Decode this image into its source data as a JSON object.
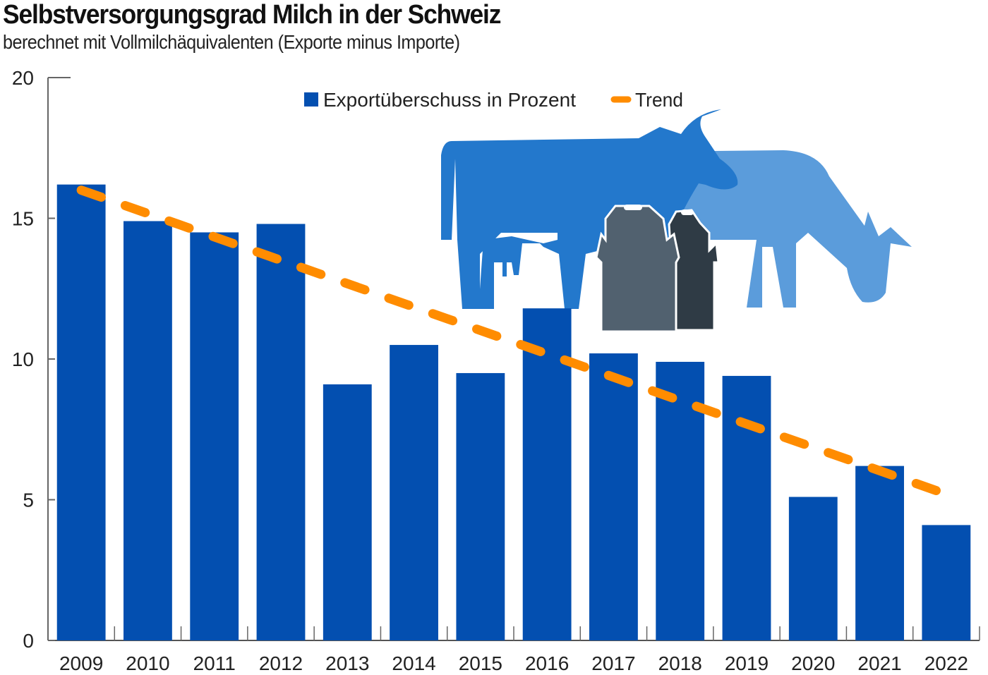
{
  "chart_data": {
    "type": "bar",
    "title": "Selbstversorgungsgrad Milch in der Schweiz",
    "subtitle": "berechnet mit Vollmilchäquivalenten (Exporte minus Importe)",
    "xlabel": "",
    "ylabel": "",
    "ylim": [
      0,
      20
    ],
    "yticks": [
      0,
      5,
      10,
      15,
      20
    ],
    "grid": false,
    "legend_position": "top-center",
    "categories": [
      "2009",
      "2010",
      "2011",
      "2012",
      "2013",
      "2014",
      "2015",
      "2016",
      "2017",
      "2018",
      "2019",
      "2020",
      "2021",
      "2022"
    ],
    "series": [
      {
        "name": "Exportüberschuss in Prozent",
        "type": "bar",
        "color": "#034fb0",
        "values": [
          16.2,
          14.9,
          14.5,
          14.8,
          9.1,
          10.5,
          9.5,
          11.8,
          10.2,
          9.9,
          9.4,
          5.1,
          6.2,
          4.1
        ]
      },
      {
        "name": "Trend",
        "type": "line",
        "style": "dashed",
        "color": "#ff8c00",
        "start": {
          "x": "2009",
          "y": 16.0
        },
        "end": {
          "x": "2022",
          "y": 5.2
        }
      }
    ],
    "illustration": {
      "icons": [
        "cow-icon",
        "cow-grazing-icon",
        "milk-can-icon",
        "milk-can-icon"
      ],
      "colors": {
        "cow_front": "#2378cc",
        "cow_back": "#5b9cdb",
        "can_front": "#51616f",
        "can_back": "#2f3b45"
      }
    }
  }
}
